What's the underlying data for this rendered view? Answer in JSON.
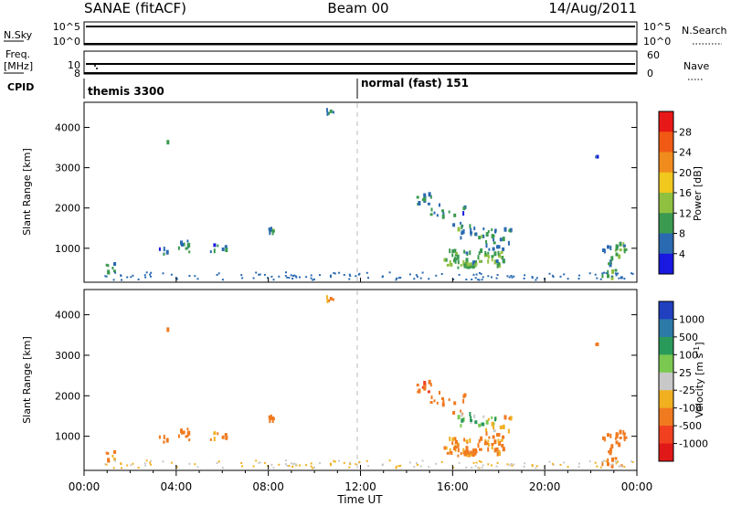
{
  "header": {
    "station": "SANAE (fitACF)",
    "beam": "Beam 00",
    "date": "14/Aug/2011"
  },
  "panels": {
    "nsky_label": "N.Sky",
    "nsky_ticks": [
      "10^5",
      "10^0"
    ],
    "nsearch_label": "N.Search",
    "nsearch_ticks": [
      "10^5",
      "10^0"
    ],
    "freq_label_1": "Freq.",
    "freq_label_2": "[MHz]",
    "freq_ticks": [
      "10",
      "8"
    ],
    "nave_label": "Nave",
    "nave_ticks": [
      "60",
      "0"
    ],
    "cpid_label": "CPID",
    "cpid_modes": [
      {
        "label": "themis 3300",
        "start_hour": 0
      },
      {
        "label": "normal (fast) 151",
        "start_hour": 12
      }
    ]
  },
  "x_axis": {
    "label": "Time UT",
    "ticks": [
      "00:00",
      "04:00",
      "08:00",
      "12:00",
      "16:00",
      "20:00",
      "00:00"
    ],
    "range_hours": [
      0,
      24
    ],
    "marker_hour": 12
  },
  "y_axis": {
    "label": "Slant Range [km]",
    "ticks": [
      "4000",
      "3000",
      "2000",
      "1000"
    ],
    "tick_values": [
      4000,
      3000,
      2000,
      1000
    ],
    "range_km": [
      180,
      4600
    ]
  },
  "power_scale": {
    "label": "Power [dB]",
    "tick_labels": [
      "28",
      "24",
      "20",
      "16",
      "12",
      "8",
      "4"
    ],
    "colors": [
      "#e81818",
      "#f05a14",
      "#f08c1e",
      "#f0c81e",
      "#90c040",
      "#3a9a50",
      "#2a6ab0",
      "#1818e0"
    ]
  },
  "velocity_scale": {
    "label": "Velocity [m s^-1]",
    "tick_labels": [
      "1000",
      "500",
      "100",
      "25",
      "-25",
      "-100",
      "-500",
      "-1000"
    ],
    "colors": [
      "#2040c0",
      "#2c7aa8",
      "#2a9a5a",
      "#7ac850",
      "#c8c8c8",
      "#f0b020",
      "#f07a20",
      "#f04020",
      "#e01818"
    ]
  },
  "chart_data": {
    "type": "heatmap",
    "title": "SANAE (fitACF) Beam 00 14/Aug/2011",
    "xlabel": "Time UT",
    "ylabel": "Slant Range [km]",
    "xlim": [
      0,
      24
    ],
    "ylim": [
      180,
      4600
    ],
    "colorbars": [
      "Power [dB]",
      "Velocity [m s^-1]"
    ],
    "clusters": [
      {
        "t0": 0.9,
        "t1": 1.3,
        "r0": 300,
        "r1": 600,
        "n": 8,
        "power": 6,
        "velocity": -150
      },
      {
        "t0": 3.2,
        "t1": 3.6,
        "r0": 800,
        "r1": 1050,
        "n": 6,
        "power": 7,
        "velocity": -200
      },
      {
        "t0": 4.0,
        "t1": 4.6,
        "r0": 800,
        "r1": 1150,
        "n": 10,
        "power": 8,
        "velocity": -250
      },
      {
        "t0": 5.4,
        "t1": 6.2,
        "r0": 850,
        "r1": 1100,
        "n": 7,
        "power": 6,
        "velocity": -180
      },
      {
        "t0": 7.8,
        "t1": 8.2,
        "r0": 1300,
        "r1": 1450,
        "n": 8,
        "power": 9,
        "velocity": -400
      },
      {
        "t0": 10.5,
        "t1": 10.8,
        "r0": 4250,
        "r1": 4400,
        "n": 5,
        "power": 7,
        "velocity": -100
      },
      {
        "t0": 14.4,
        "t1": 15.2,
        "r0": 2050,
        "r1": 2300,
        "n": 12,
        "power": 8,
        "velocity": -450
      },
      {
        "t0": 15.0,
        "t1": 16.5,
        "r0": 1500,
        "r1": 2050,
        "n": 16,
        "power": 7,
        "velocity": -300
      },
      {
        "t0": 16.2,
        "t1": 17.9,
        "r0": 1200,
        "r1": 1500,
        "n": 22,
        "power": 9,
        "velocity": 60
      },
      {
        "t0": 15.6,
        "t1": 18.2,
        "r0": 480,
        "r1": 900,
        "n": 70,
        "power": 11,
        "velocity": -150
      },
      {
        "t0": 17.4,
        "t1": 18.6,
        "r0": 900,
        "r1": 1450,
        "n": 18,
        "power": 7,
        "velocity": -120
      },
      {
        "t0": 22.4,
        "t1": 23.6,
        "r0": 200,
        "r1": 1050,
        "n": 30,
        "power": 10,
        "velocity": -300
      },
      {
        "t0": 22.1,
        "t1": 22.3,
        "r0": 3180,
        "r1": 3280,
        "n": 2,
        "power": 5,
        "velocity": -350
      },
      {
        "t0": 3.5,
        "t1": 3.6,
        "r0": 3560,
        "r1": 3620,
        "n": 1,
        "power": 6,
        "velocity": -100
      }
    ],
    "groundscatter": {
      "t0": 0.8,
      "t1": 23.8,
      "r0": 190,
      "r1": 380,
      "n": 140,
      "power": 4,
      "velocity": 0
    }
  }
}
